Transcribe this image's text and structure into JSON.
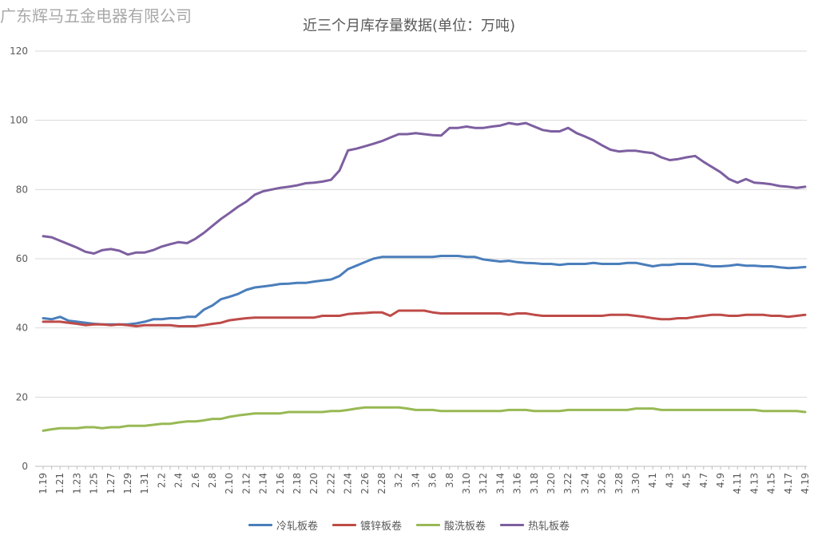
{
  "watermark": "广东辉马五金电器有限公司",
  "chart_data": {
    "type": "line",
    "title": "近三个月库存量数据(单位：万吨)",
    "xlabel": "",
    "ylabel": "",
    "ylim": [
      0,
      120
    ],
    "yticks": [
      0,
      20,
      40,
      60,
      80,
      100,
      120
    ],
    "grid": true,
    "legend_position": "bottom",
    "x": [
      "1.19",
      "1.20",
      "1.21",
      "1.22",
      "1.23",
      "1.24",
      "1.25",
      "1.26",
      "1.27",
      "1.28",
      "1.29",
      "1.30",
      "1.31",
      "2.1",
      "2.2",
      "2.3",
      "2.4",
      "2.5",
      "2.6",
      "2.7",
      "2.8",
      "2.9",
      "2.10",
      "2.11",
      "2.12",
      "2.13",
      "2.14",
      "2.15",
      "2.16",
      "2.17",
      "2.18",
      "2.19",
      "2.20",
      "2.21",
      "2.22",
      "2.23",
      "2.24",
      "2.25",
      "2.26",
      "2.27",
      "2.28",
      "3.1",
      "3.2",
      "3.3",
      "3.4",
      "3.5",
      "3.6",
      "3.7",
      "3.8",
      "3.9",
      "3.10",
      "3.11",
      "3.12",
      "3.13",
      "3.14",
      "3.15",
      "3.16",
      "3.17",
      "3.18",
      "3.19",
      "3.20",
      "3.21",
      "3.22",
      "3.23",
      "3.24",
      "3.25",
      "3.26",
      "3.27",
      "3.28",
      "3.29",
      "3.30",
      "3.31",
      "4.1",
      "4.2",
      "4.3",
      "4.4",
      "4.5",
      "4.6",
      "4.7",
      "4.8",
      "4.9",
      "4.10",
      "4.11",
      "4.12",
      "4.13",
      "4.14",
      "4.15",
      "4.16",
      "4.17",
      "4.18",
      "4.19"
    ],
    "xtick_labels": [
      "1.19",
      "1.21",
      "1.23",
      "1.25",
      "1.27",
      "1.29",
      "1.31",
      "2.2",
      "2.4",
      "2.6",
      "2.8",
      "2.10",
      "2.12",
      "2.14",
      "2.16",
      "2.18",
      "2.20",
      "2.22",
      "2.24",
      "2.26",
      "2.28",
      "3.2",
      "3.4",
      "3.6",
      "3.8",
      "3.10",
      "3.12",
      "3.14",
      "3.16",
      "3.18",
      "3.20",
      "3.22",
      "3.24",
      "3.26",
      "3.28",
      "3.30",
      "4.1",
      "4.3",
      "4.5",
      "4.7",
      "4.9",
      "4.11",
      "4.13",
      "4.15",
      "4.17",
      "4.19"
    ],
    "series": [
      {
        "name": "冷轧板卷",
        "color": "#4a7ebb",
        "values": [
          42.8,
          42.5,
          43.2,
          42.1,
          41.8,
          41.5,
          41.2,
          41.0,
          41.0,
          41.0,
          41.0,
          41.3,
          41.8,
          42.5,
          42.5,
          42.8,
          42.8,
          43.2,
          43.2,
          45.3,
          46.5,
          48.3,
          49.0,
          49.8,
          51.0,
          51.7,
          52.0,
          52.3,
          52.7,
          52.8,
          53.0,
          53.0,
          53.4,
          53.7,
          54.0,
          55.0,
          57.0,
          58.0,
          59.0,
          60.0,
          60.5,
          60.5,
          60.5,
          60.5,
          60.5,
          60.5,
          60.5,
          60.8,
          60.8,
          60.8,
          60.5,
          60.5,
          59.8,
          59.5,
          59.2,
          59.4,
          59.0,
          58.8,
          58.7,
          58.5,
          58.5,
          58.2,
          58.5,
          58.5,
          58.5,
          58.8,
          58.5,
          58.5,
          58.5,
          58.8,
          58.8,
          58.3,
          57.8,
          58.2,
          58.2,
          58.5,
          58.5,
          58.5,
          58.2,
          57.8,
          57.8,
          58.0,
          58.3,
          58.0,
          58.0,
          57.8,
          57.8,
          57.5,
          57.3,
          57.4,
          57.6
        ]
      },
      {
        "name": "镀锌板卷",
        "color": "#be4b48",
        "values": [
          41.8,
          41.8,
          41.8,
          41.5,
          41.2,
          40.8,
          41.0,
          41.0,
          40.8,
          41.0,
          40.8,
          40.5,
          40.8,
          40.8,
          40.8,
          40.8,
          40.5,
          40.5,
          40.5,
          40.8,
          41.2,
          41.5,
          42.2,
          42.5,
          42.8,
          43.0,
          43.0,
          43.0,
          43.0,
          43.0,
          43.0,
          43.0,
          43.0,
          43.5,
          43.5,
          43.5,
          44.0,
          44.2,
          44.3,
          44.5,
          44.5,
          43.5,
          45.0,
          45.0,
          45.0,
          45.0,
          44.5,
          44.2,
          44.2,
          44.2,
          44.2,
          44.2,
          44.2,
          44.2,
          44.2,
          43.8,
          44.2,
          44.2,
          43.8,
          43.5,
          43.5,
          43.5,
          43.5,
          43.5,
          43.5,
          43.5,
          43.5,
          43.8,
          43.8,
          43.8,
          43.5,
          43.2,
          42.8,
          42.5,
          42.5,
          42.8,
          42.8,
          43.2,
          43.5,
          43.8,
          43.8,
          43.5,
          43.5,
          43.8,
          43.8,
          43.8,
          43.5,
          43.5,
          43.2,
          43.5,
          43.8
        ]
      },
      {
        "name": "酸洗板卷",
        "color": "#98b954",
        "values": [
          10.3,
          10.7,
          11.0,
          11.0,
          11.0,
          11.3,
          11.3,
          11.0,
          11.3,
          11.3,
          11.7,
          11.7,
          11.7,
          12.0,
          12.3,
          12.3,
          12.7,
          13.0,
          13.0,
          13.3,
          13.7,
          13.7,
          14.3,
          14.7,
          15.0,
          15.3,
          15.3,
          15.3,
          15.3,
          15.7,
          15.7,
          15.7,
          15.7,
          15.7,
          16.0,
          16.0,
          16.3,
          16.7,
          17.0,
          17.0,
          17.0,
          17.0,
          17.0,
          16.7,
          16.3,
          16.3,
          16.3,
          16.0,
          16.0,
          16.0,
          16.0,
          16.0,
          16.0,
          16.0,
          16.0,
          16.3,
          16.3,
          16.3,
          16.0,
          16.0,
          16.0,
          16.0,
          16.3,
          16.3,
          16.3,
          16.3,
          16.3,
          16.3,
          16.3,
          16.3,
          16.7,
          16.7,
          16.7,
          16.3,
          16.3,
          16.3,
          16.3,
          16.3,
          16.3,
          16.3,
          16.3,
          16.3,
          16.3,
          16.3,
          16.3,
          16.0,
          16.0,
          16.0,
          16.0,
          16.0,
          15.7
        ]
      },
      {
        "name": "热轧板卷",
        "color": "#7d5fa0",
        "values": [
          66.5,
          66.2,
          65.2,
          64.2,
          63.2,
          62.0,
          61.5,
          62.5,
          62.8,
          62.3,
          61.2,
          61.8,
          61.8,
          62.5,
          63.5,
          64.2,
          64.8,
          64.5,
          65.8,
          67.5,
          69.5,
          71.5,
          73.2,
          75.0,
          76.5,
          78.5,
          79.5,
          80.0,
          80.5,
          80.8,
          81.2,
          81.8,
          82.0,
          82.3,
          82.8,
          85.5,
          91.3,
          91.8,
          92.5,
          93.2,
          94.0,
          95.0,
          96.0,
          96.0,
          96.3,
          96.0,
          95.7,
          95.6,
          97.8,
          97.8,
          98.2,
          97.8,
          97.8,
          98.2,
          98.5,
          99.2,
          98.8,
          99.2,
          98.2,
          97.2,
          96.8,
          96.8,
          97.8,
          96.3,
          95.3,
          94.2,
          92.8,
          91.5,
          91.0,
          91.2,
          91.2,
          90.8,
          90.5,
          89.3,
          88.5,
          88.8,
          89.3,
          89.7,
          88.0,
          86.5,
          85.0,
          83.0,
          82.0,
          83.0,
          82.0,
          81.8,
          81.5,
          81.0,
          80.8,
          80.5,
          80.8
        ]
      }
    ]
  }
}
